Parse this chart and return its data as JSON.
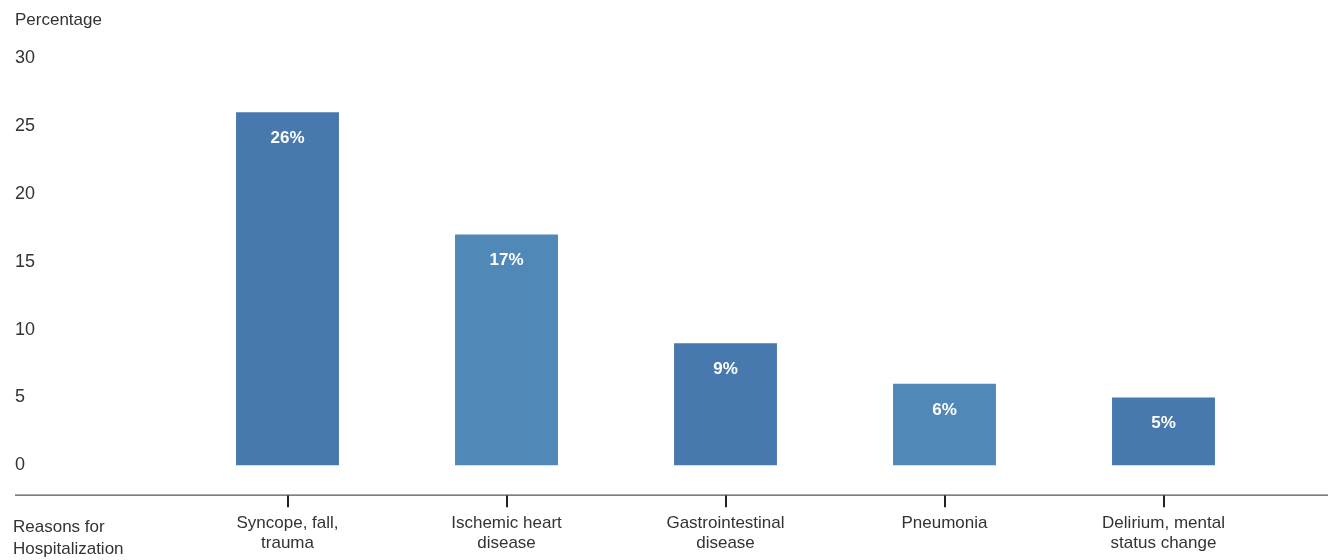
{
  "chart_data": {
    "type": "bar",
    "ylabel": "Percentage",
    "xlabel": "Reasons for Hospitalization",
    "categories": [
      "Syncope, fall, trauma",
      "Ischemic heart disease",
      "Gastrointestinal disease",
      "Pneumonia",
      "Delirium, mental status change"
    ],
    "values": [
      26,
      17,
      9,
      6,
      5
    ],
    "colors": [
      "#4779ae",
      "#5088b8",
      "#4779ae",
      "#5088b8",
      "#4779ae"
    ],
    "value_labels": [
      "26%",
      "17%",
      "9%",
      "6%",
      "5%"
    ],
    "ylim": [
      -2.2,
      30
    ],
    "yticks": [
      0,
      5,
      10,
      15,
      20,
      25,
      30
    ]
  }
}
